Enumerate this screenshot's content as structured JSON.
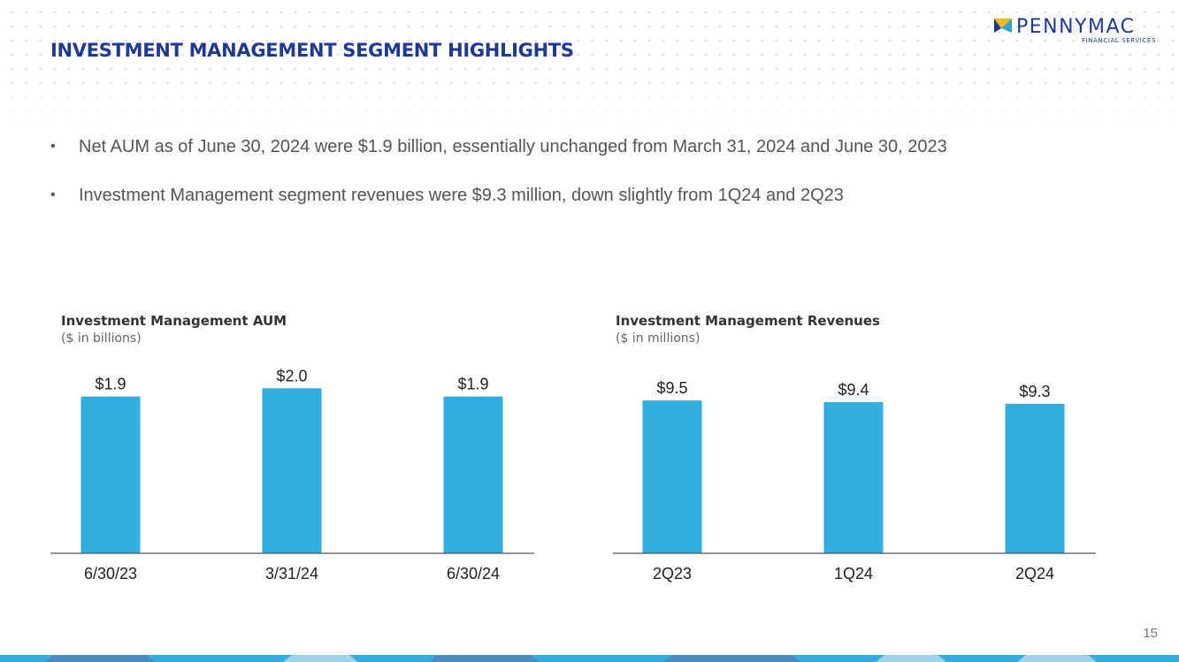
{
  "header": {
    "title": "INVESTMENT MANAGEMENT SEGMENT HIGHLIGHTS",
    "logo_name": "PENNYMAC",
    "logo_sub": "FINANCIAL SERVICES"
  },
  "bullets": [
    "Net AUM as of June 30, 2024 were $1.9 billion, essentially unchanged from March 31, 2024 and June 30, 2023",
    "Investment Management segment revenues were $9.3 million, down slightly from 1Q24 and 2Q23"
  ],
  "colors": {
    "title": "#1f3a93",
    "bar": "#31ade0",
    "axis": "#555555",
    "logo_arrow": "#f5b915",
    "logo_arrow2": "#2fa8c9"
  },
  "chart_data": [
    {
      "type": "bar",
      "title": "Investment Management AUM",
      "subtitle": "($ in billions)",
      "categories": [
        "6/30/23",
        "3/31/24",
        "6/30/24"
      ],
      "values": [
        1.9,
        2.0,
        1.9
      ],
      "labels": [
        "$1.9",
        "$2.0",
        "$1.9"
      ],
      "ylim": [
        0,
        2.1
      ]
    },
    {
      "type": "bar",
      "title": "Investment Management Revenues",
      "subtitle": "($ in millions)",
      "categories": [
        "2Q23",
        "1Q24",
        "2Q24"
      ],
      "values": [
        9.5,
        9.4,
        9.3
      ],
      "labels": [
        "$9.5",
        "$9.4",
        "$9.3"
      ],
      "ylim": [
        0,
        10.5
      ]
    }
  ],
  "page_number": "15"
}
